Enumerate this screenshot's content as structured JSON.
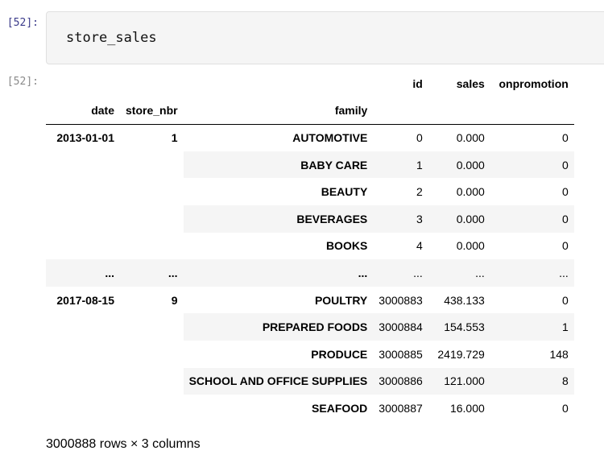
{
  "input_prompt": "[52]:",
  "output_prompt": "[52]:",
  "code": "store_sales",
  "dataframe": {
    "columns": [
      "id",
      "sales",
      "onpromotion"
    ],
    "index_names": [
      "date",
      "store_nbr",
      "family"
    ],
    "rows": [
      {
        "date": "2013-01-01",
        "store": "1",
        "family": "AUTOMOTIVE",
        "id": "0",
        "sales": "0.000",
        "onpromotion": "0"
      },
      {
        "date": "",
        "store": "",
        "family": "BABY CARE",
        "id": "1",
        "sales": "0.000",
        "onpromotion": "0"
      },
      {
        "date": "",
        "store": "",
        "family": "BEAUTY",
        "id": "2",
        "sales": "0.000",
        "onpromotion": "0"
      },
      {
        "date": "",
        "store": "",
        "family": "BEVERAGES",
        "id": "3",
        "sales": "0.000",
        "onpromotion": "0"
      },
      {
        "date": "",
        "store": "",
        "family": "BOOKS",
        "id": "4",
        "sales": "0.000",
        "onpromotion": "0"
      },
      {
        "date": "...",
        "store": "...",
        "family": "...",
        "id": "...",
        "sales": "...",
        "onpromotion": "..."
      },
      {
        "date": "2017-08-15",
        "store": "9",
        "family": "POULTRY",
        "id": "3000883",
        "sales": "438.133",
        "onpromotion": "0"
      },
      {
        "date": "",
        "store": "",
        "family": "PREPARED FOODS",
        "id": "3000884",
        "sales": "154.553",
        "onpromotion": "1"
      },
      {
        "date": "",
        "store": "",
        "family": "PRODUCE",
        "id": "3000885",
        "sales": "2419.729",
        "onpromotion": "148"
      },
      {
        "date": "",
        "store": "",
        "family": "SCHOOL AND OFFICE SUPPLIES",
        "id": "3000886",
        "sales": "121.000",
        "onpromotion": "8"
      },
      {
        "date": "",
        "store": "",
        "family": "SEAFOOD",
        "id": "3000887",
        "sales": "16.000",
        "onpromotion": "0"
      }
    ]
  },
  "summary": "3000888 rows × 3 columns"
}
